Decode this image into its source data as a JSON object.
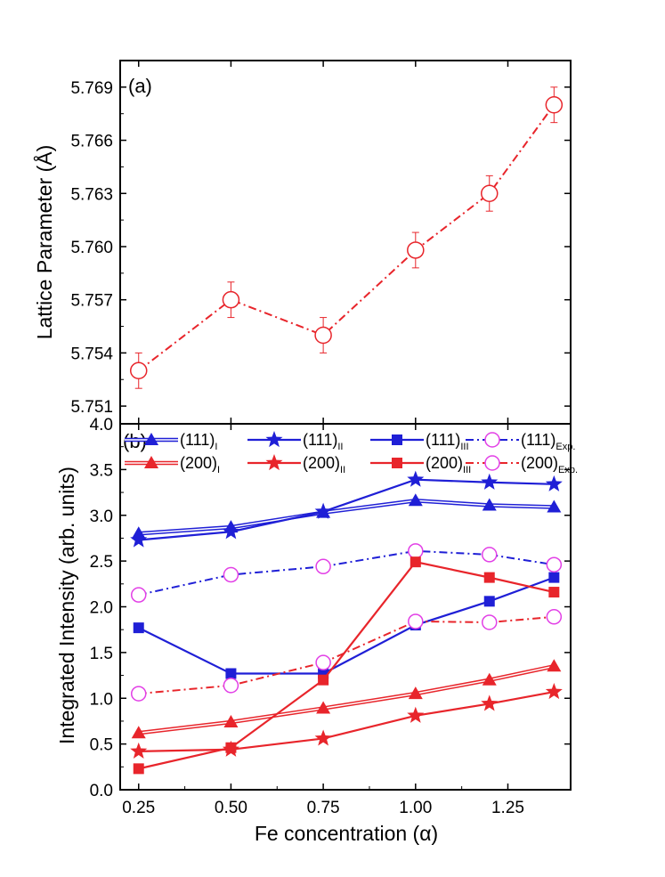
{
  "chart_data": [
    {
      "type": "line",
      "panel_label": "(a)",
      "ylabel": "Lattice Parameter (Å)",
      "xlim": [
        0.2,
        1.42
      ],
      "ylim": [
        5.75,
        5.7705
      ],
      "yticks": [
        "5.751",
        "5.754",
        "5.757",
        "5.760",
        "5.763",
        "5.766",
        "5.769"
      ],
      "ytick_values": [
        5.751,
        5.754,
        5.757,
        5.76,
        5.763,
        5.766,
        5.769
      ],
      "series": [
        {
          "name": "Lattice parameter",
          "color": "#e8252b",
          "line": "dash-dot",
          "marker": "open-circle",
          "x": [
            0.25,
            0.5,
            0.75,
            1.0,
            1.2,
            1.375
          ],
          "y": [
            5.753,
            5.757,
            5.755,
            5.7598,
            5.763,
            5.768
          ],
          "err": [
            0.001,
            0.001,
            0.001,
            0.001,
            0.001,
            0.001
          ]
        }
      ]
    },
    {
      "type": "line",
      "panel_label": "(b)",
      "xlabel": "Fe concentration (α)",
      "ylabel": "Integrated Intensity (arb. units)",
      "xlim": [
        0.2,
        1.42
      ],
      "ylim": [
        0.0,
        4.0
      ],
      "xticks": [
        "0.25",
        "0.50",
        "0.75",
        "1.00",
        "1.25"
      ],
      "xtick_values": [
        0.25,
        0.5,
        0.75,
        1.0,
        1.25
      ],
      "yticks": [
        "0.0",
        "0.5",
        "1.0",
        "1.5",
        "2.0",
        "2.5",
        "3.0",
        "3.5",
        "4.0"
      ],
      "ytick_values": [
        0.0,
        0.5,
        1.0,
        1.5,
        2.0,
        2.5,
        3.0,
        3.5,
        4.0
      ],
      "x": [
        0.25,
        0.5,
        0.75,
        1.0,
        1.2,
        1.375
      ],
      "series": [
        {
          "name": "(111)",
          "sub": "I",
          "color": "#1f1fd6",
          "line": "double",
          "marker": "triangle",
          "values": [
            2.8,
            2.87,
            3.03,
            3.16,
            3.11,
            3.09
          ]
        },
        {
          "name": "(111)",
          "sub": "II",
          "color": "#1f1fd6",
          "line": "solid",
          "marker": "star",
          "values": [
            2.73,
            2.82,
            3.04,
            3.39,
            3.36,
            3.34
          ]
        },
        {
          "name": "(111)",
          "sub": "III",
          "color": "#1f1fd6",
          "line": "solid",
          "marker": "square",
          "values": [
            1.77,
            1.27,
            1.27,
            1.8,
            2.06,
            2.32
          ]
        },
        {
          "name": "(111)",
          "sub": "Exp.",
          "color": "#1f1fd6",
          "marker_color": "#e23fe6",
          "line": "dash-dot",
          "marker": "open-circle",
          "values": [
            2.13,
            2.35,
            2.44,
            2.61,
            2.57,
            2.46
          ]
        },
        {
          "name": "(200)",
          "sub": "I",
          "color": "#e8252b",
          "line": "double",
          "marker": "triangle",
          "values": [
            0.62,
            0.74,
            0.89,
            1.05,
            1.2,
            1.35
          ]
        },
        {
          "name": "(200)",
          "sub": "II",
          "color": "#e8252b",
          "line": "solid",
          "marker": "star",
          "values": [
            0.42,
            0.44,
            0.56,
            0.81,
            0.94,
            1.07
          ]
        },
        {
          "name": "(200)",
          "sub": "III",
          "color": "#e8252b",
          "line": "solid",
          "marker": "square",
          "values": [
            0.23,
            0.46,
            1.2,
            2.49,
            2.32,
            2.16
          ]
        },
        {
          "name": "(200)",
          "sub": "Exp.",
          "color": "#e8252b",
          "marker_color": "#e23fe6",
          "line": "dash-dot",
          "marker": "open-circle",
          "values": [
            1.05,
            1.14,
            1.39,
            1.84,
            1.83,
            1.89
          ]
        }
      ]
    }
  ]
}
